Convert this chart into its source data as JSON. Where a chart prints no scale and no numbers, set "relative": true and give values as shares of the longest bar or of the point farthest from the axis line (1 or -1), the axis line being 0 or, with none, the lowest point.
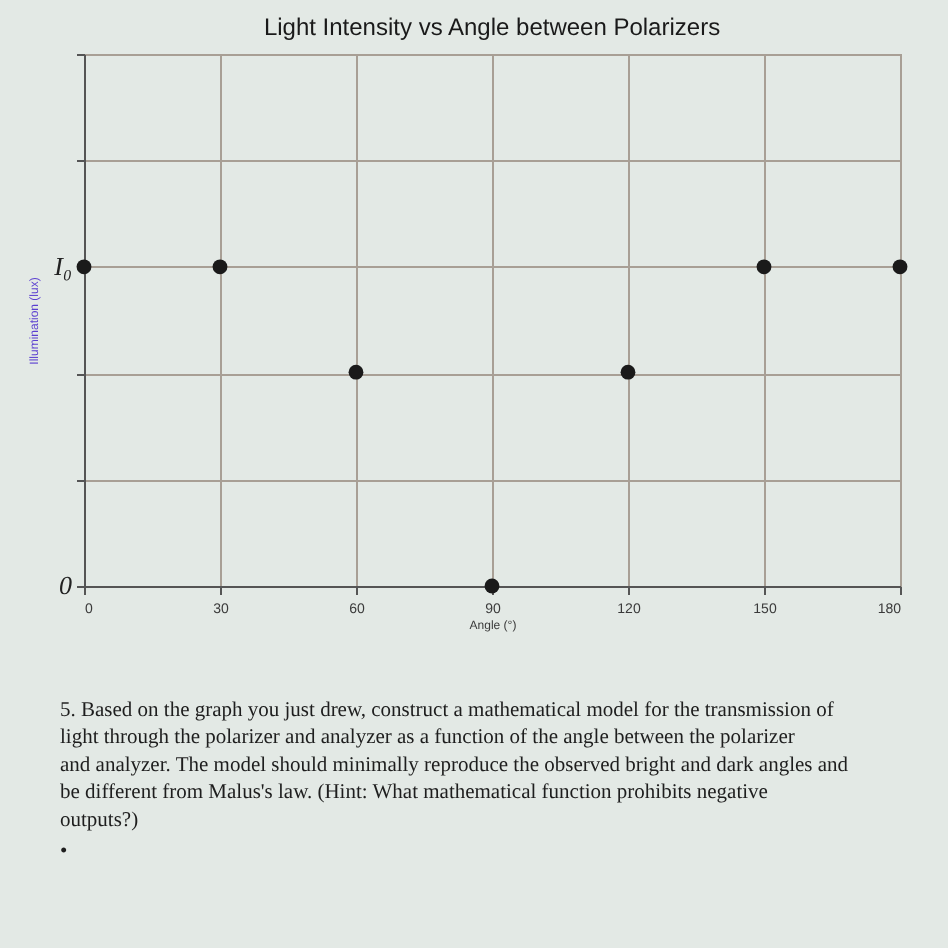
{
  "chart_data": {
    "type": "scatter",
    "title": "Light Intensity vs Angle between Polarizers",
    "xlabel": "Angle (°)",
    "ylabel": "Illumination (lux)",
    "relative": true,
    "x": [
      0,
      30,
      60,
      90,
      120,
      150,
      180
    ],
    "series": [
      {
        "color": "#1a1a1a",
        "values": [
          1,
          1,
          0.67,
          0,
          0.67,
          1,
          1
        ]
      }
    ],
    "xlim": [
      0,
      180
    ],
    "xticks": [
      0,
      30,
      60,
      90,
      120,
      150,
      180
    ],
    "grid": true,
    "marker": "circle",
    "annotations": [
      {
        "text": "I₀",
        "x": 0,
        "y": 1
      },
      "0",
      "5. Based on the graph you just drew, construct a mathematical model for the transmission of light through the polarizer and analyzer as a function of the angle between the polarizer and analyzer. The model should minimally reproduce the observed bright and dark angles and be different from Malus's law. (Hint: What mathematical function prohibits negative outputs?)",
      "•"
    ]
  }
}
